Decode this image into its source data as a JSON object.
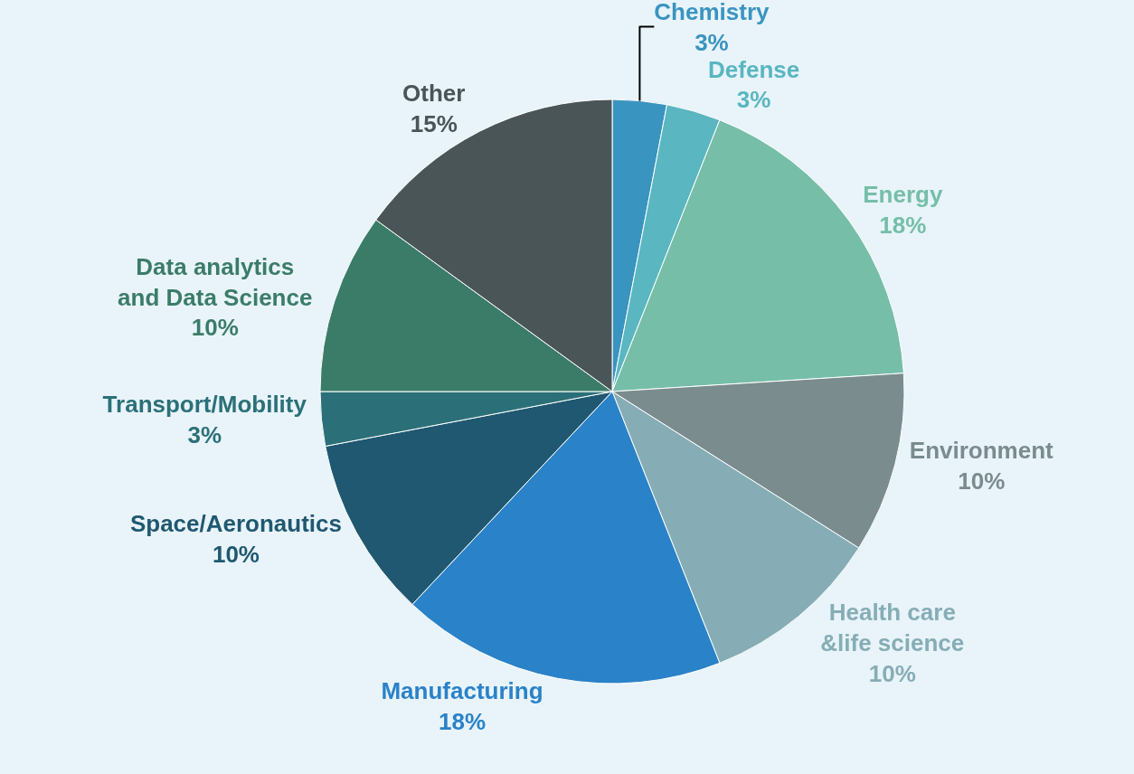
{
  "chart_data": {
    "type": "pie",
    "categories": [
      "Chemistry",
      "Defense",
      "Energy",
      "Environment",
      "Health care &life science",
      "Manufacturing",
      "Space/Aeronautics",
      "Transport/Mobility",
      "Data analytics and Data Science",
      "Other"
    ],
    "values": [
      3,
      3,
      18,
      10,
      10,
      18,
      10,
      3,
      10,
      15
    ],
    "colors": [
      "#3a94c0",
      "#5ab6c0",
      "#76bea8",
      "#7a8c8e",
      "#86adb5",
      "#2a82c8",
      "#1f5870",
      "#2b7078",
      "#3b7c68",
      "#4a5558"
    ],
    "value_labels": [
      "3%",
      "3%",
      "18%",
      "10%",
      "10%",
      "18%",
      "10%",
      "3%",
      "10%",
      "15%"
    ],
    "legend": false
  }
}
